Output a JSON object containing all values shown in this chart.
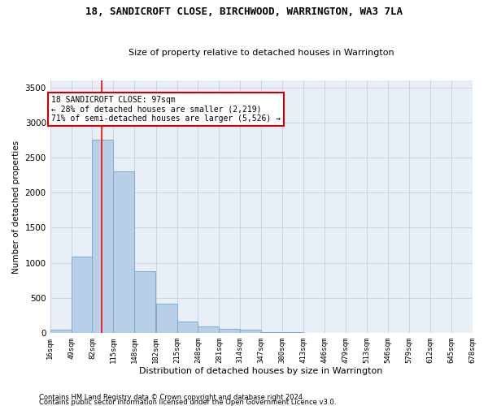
{
  "title": "18, SANDICROFT CLOSE, BIRCHWOOD, WARRINGTON, WA3 7LA",
  "subtitle": "Size of property relative to detached houses in Warrington",
  "xlabel": "Distribution of detached houses by size in Warrington",
  "ylabel": "Number of detached properties",
  "bar_color": "#b8cfe8",
  "bar_edge_color": "#6ea6d0",
  "grid_color": "#c8d4e4",
  "bg_color": "#e8eef6",
  "red_line_x": 97,
  "annotation_line1": "18 SANDICROFT CLOSE: 97sqm",
  "annotation_line2": "← 28% of detached houses are smaller (2,219)",
  "annotation_line3": "71% of semi-detached houses are larger (5,526) →",
  "annotation_box_color": "#ffffff",
  "annotation_box_edge": "#cc0000",
  "footnote1": "Contains HM Land Registry data © Crown copyright and database right 2024.",
  "footnote2": "Contains public sector information licensed under the Open Government Licence v3.0.",
  "bin_edges": [
    16,
    49,
    82,
    115,
    148,
    182,
    215,
    248,
    281,
    314,
    347,
    380,
    413,
    446,
    479,
    513,
    546,
    579,
    612,
    645,
    678
  ],
  "bin_labels": [
    "16sqm",
    "49sqm",
    "82sqm",
    "115sqm",
    "148sqm",
    "182sqm",
    "215sqm",
    "248sqm",
    "281sqm",
    "314sqm",
    "347sqm",
    "380sqm",
    "413sqm",
    "446sqm",
    "479sqm",
    "513sqm",
    "546sqm",
    "579sqm",
    "612sqm",
    "645sqm",
    "678sqm"
  ],
  "bar_heights": [
    50,
    1090,
    2750,
    2300,
    880,
    420,
    165,
    85,
    55,
    40,
    15,
    5,
    2,
    1,
    0,
    0,
    0,
    0,
    0,
    0
  ],
  "ylim": [
    0,
    3600
  ],
  "yticks": [
    0,
    500,
    1000,
    1500,
    2000,
    2500,
    3000,
    3500
  ]
}
